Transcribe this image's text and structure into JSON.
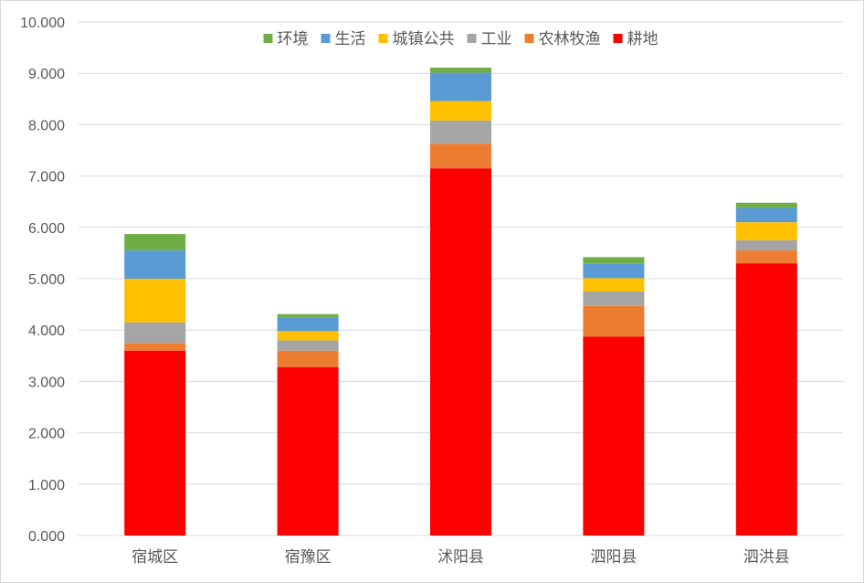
{
  "chart_data": {
    "type": "bar",
    "stacked": true,
    "title": "",
    "xlabel": "",
    "ylabel": "",
    "ylim": [
      0,
      10
    ],
    "ytick_step": 1,
    "ytick_format_decimals": 3,
    "grid": true,
    "legend_position": "top",
    "categories": [
      "宿城区",
      "宿豫区",
      "沭阳县",
      "泗阳县",
      "泗洪县"
    ],
    "series": [
      {
        "name": "耕地",
        "color": "#ff0000",
        "values": [
          3.6,
          3.28,
          7.15,
          3.87,
          5.3
        ]
      },
      {
        "name": "农林牧渔",
        "color": "#ed7d31",
        "values": [
          0.15,
          0.32,
          0.48,
          0.6,
          0.25
        ]
      },
      {
        "name": "工业",
        "color": "#a5a5a5",
        "values": [
          0.4,
          0.2,
          0.45,
          0.28,
          0.2
        ]
      },
      {
        "name": "城镇公共",
        "color": "#ffc000",
        "values": [
          0.85,
          0.18,
          0.38,
          0.26,
          0.35
        ]
      },
      {
        "name": "生活",
        "color": "#5b9bd5",
        "values": [
          0.55,
          0.27,
          0.55,
          0.28,
          0.28
        ]
      },
      {
        "name": "环境",
        "color": "#70ad47",
        "values": [
          0.32,
          0.06,
          0.1,
          0.13,
          0.1
        ]
      }
    ],
    "legend_order": [
      "环境",
      "生活",
      "城镇公共",
      "工业",
      "农林牧渔",
      "耕地"
    ]
  }
}
